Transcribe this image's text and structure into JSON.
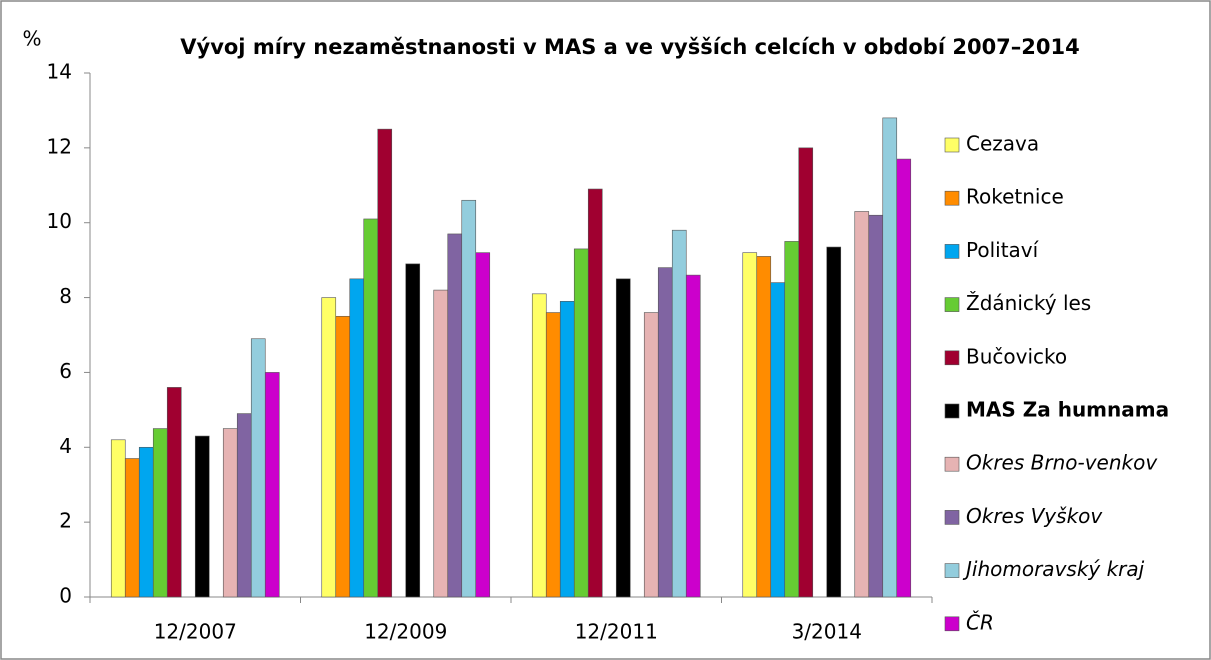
{
  "chart_data": {
    "type": "bar",
    "title": "Vývoj míry nezaměstnanosti v MAS a ve vyšších celcích v období 2007–2014",
    "y_label": "%",
    "categories": [
      "12/2007",
      "12/2009",
      "12/2011",
      "3/2014"
    ],
    "ylim": [
      0,
      14
    ],
    "yticks": [
      0,
      2,
      4,
      6,
      8,
      10,
      12,
      14
    ],
    "grid": false,
    "legend": "right",
    "series": [
      {
        "name": "Cezava",
        "color": "#ffff66",
        "font_style": "normal",
        "values": [
          4.2,
          8.0,
          8.1,
          9.2
        ]
      },
      {
        "name": "Roketnice",
        "color": "#ff8c00",
        "font_style": "normal",
        "values": [
          3.7,
          7.5,
          7.6,
          9.1
        ]
      },
      {
        "name": "Politaví",
        "color": "#00a6ef",
        "font_style": "normal",
        "values": [
          4.0,
          8.5,
          7.9,
          8.4
        ]
      },
      {
        "name": "Ždánický les",
        "color": "#66cc33",
        "font_style": "normal",
        "values": [
          4.5,
          10.1,
          9.3,
          9.5
        ]
      },
      {
        "name": "Bučovicko",
        "color": "#a00030",
        "font_style": "normal",
        "values": [
          5.6,
          12.5,
          10.9,
          12.0
        ]
      },
      {
        "name": "MAS Za humnama",
        "color": "#000000",
        "font_style": "bold",
        "values": [
          4.3,
          8.9,
          8.5,
          9.35
        ]
      },
      {
        "name": "Okres Brno-venkov",
        "color": "#e6b3b3",
        "font_style": "italic",
        "values": [
          4.5,
          8.2,
          7.6,
          10.3
        ]
      },
      {
        "name": "Okres Vyškov",
        "color": "#8064a2",
        "font_style": "italic",
        "values": [
          4.9,
          9.7,
          8.8,
          10.2
        ]
      },
      {
        "name": "Jihomoravský kraj",
        "color": "#93cddd",
        "font_style": "italic",
        "values": [
          6.9,
          10.6,
          9.8,
          12.8
        ]
      },
      {
        "name": "ČR",
        "color": "#cc00cc",
        "font_style": "italic",
        "values": [
          6.0,
          9.2,
          8.6,
          11.7
        ]
      }
    ]
  }
}
